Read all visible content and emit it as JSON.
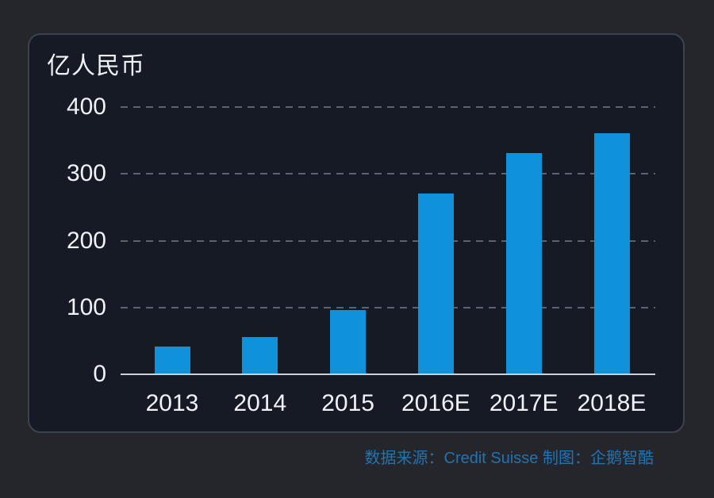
{
  "panel": {
    "background": "#151a25",
    "border_color": "#3c424e"
  },
  "chart_data": {
    "type": "bar",
    "title": "",
    "unit_label": "亿人民币",
    "categories": [
      "2013",
      "2014",
      "2015",
      "2016E",
      "2017E",
      "2018E"
    ],
    "values": [
      40,
      55,
      95,
      270,
      330,
      360
    ],
    "xlabel": "",
    "ylabel": "亿人民币",
    "ylim": [
      0,
      400
    ],
    "yticks": [
      0,
      100,
      200,
      300,
      400
    ],
    "grid": "horizontal dashed gridlines at 100/200/300/400, solid baseline at 0",
    "legend": "none",
    "bar_color": "#0f92da",
    "gridline_color": "#5b6270",
    "axis_line_color": "#ccd0d8",
    "text_color": "#f0f2f6"
  },
  "caption": {
    "text": "数据来源：Credit Suisse 制图：企鹅智酷",
    "color": "#2173b2"
  }
}
